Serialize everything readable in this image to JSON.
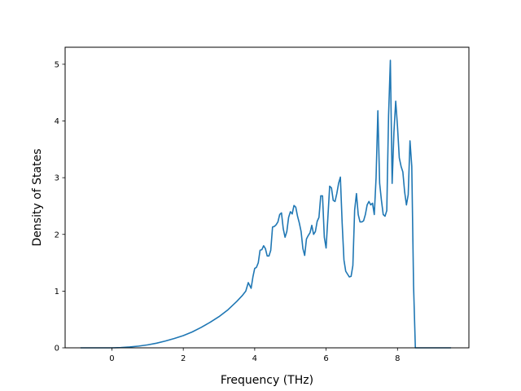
{
  "chart_data": {
    "type": "line",
    "title": "",
    "xlabel": "Frequency (THz)",
    "ylabel": "Density of States",
    "xlim": [
      -1.31,
      10.0
    ],
    "ylim": [
      0,
      5.3
    ],
    "grid": false,
    "legend": "none",
    "xticks": [
      0,
      2,
      4,
      6,
      8
    ],
    "yticks": [
      0,
      1,
      2,
      3,
      4,
      5
    ],
    "series": [
      {
        "color": "#1f77b4",
        "x": [
          -0.88,
          -0.5,
          0.0,
          0.25,
          0.5,
          0.75,
          1.0,
          1.25,
          1.5,
          1.75,
          2.0,
          2.25,
          2.5,
          2.75,
          3.0,
          3.25,
          3.5,
          3.65,
          3.75,
          3.82,
          3.86,
          3.9,
          3.95,
          4.0,
          4.05,
          4.1,
          4.15,
          4.2,
          4.25,
          4.3,
          4.35,
          4.4,
          4.45,
          4.5,
          4.55,
          4.6,
          4.65,
          4.7,
          4.75,
          4.8,
          4.85,
          4.9,
          4.95,
          5.0,
          5.05,
          5.1,
          5.15,
          5.2,
          5.25,
          5.3,
          5.35,
          5.4,
          5.45,
          5.5,
          5.55,
          5.6,
          5.65,
          5.7,
          5.75,
          5.8,
          5.85,
          5.9,
          5.95,
          6.0,
          6.05,
          6.1,
          6.15,
          6.2,
          6.25,
          6.3,
          6.35,
          6.4,
          6.45,
          6.5,
          6.55,
          6.6,
          6.65,
          6.7,
          6.75,
          6.8,
          6.85,
          6.9,
          6.95,
          7.0,
          7.05,
          7.1,
          7.15,
          7.2,
          7.25,
          7.3,
          7.35,
          7.4,
          7.45,
          7.5,
          7.55,
          7.6,
          7.65,
          7.7,
          7.75,
          7.8,
          7.85,
          7.9,
          7.95,
          8.0,
          8.05,
          8.1,
          8.15,
          8.2,
          8.25,
          8.3,
          8.35,
          8.4,
          8.45,
          8.5,
          8.55,
          8.6,
          8.65,
          8.7,
          9.0,
          9.5
        ],
        "y": [
          0.0,
          0.0,
          0.0,
          0.0047,
          0.0146,
          0.0308,
          0.052,
          0.082,
          0.12,
          0.165,
          0.215,
          0.28,
          0.36,
          0.45,
          0.55,
          0.67,
          0.82,
          0.92,
          1.0,
          1.15,
          1.1,
          1.05,
          1.25,
          1.4,
          1.42,
          1.5,
          1.72,
          1.73,
          1.8,
          1.75,
          1.62,
          1.62,
          1.72,
          2.13,
          2.14,
          2.17,
          2.22,
          2.35,
          2.38,
          2.1,
          1.95,
          2.05,
          2.3,
          2.4,
          2.36,
          2.51,
          2.48,
          2.32,
          2.2,
          2.05,
          1.75,
          1.63,
          1.92,
          1.98,
          2.03,
          2.16,
          2.0,
          2.05,
          2.23,
          2.3,
          2.68,
          2.68,
          1.95,
          1.76,
          2.3,
          2.85,
          2.82,
          2.6,
          2.58,
          2.72,
          2.9,
          3.01,
          2.2,
          1.55,
          1.35,
          1.3,
          1.25,
          1.26,
          1.45,
          2.43,
          2.72,
          2.35,
          2.22,
          2.22,
          2.24,
          2.35,
          2.52,
          2.58,
          2.52,
          2.55,
          2.35,
          3.0,
          4.18,
          2.9,
          2.6,
          2.35,
          2.32,
          2.42,
          4.1,
          5.07,
          2.9,
          3.8,
          4.35,
          3.9,
          3.35,
          3.2,
          3.1,
          2.75,
          2.52,
          2.7,
          3.65,
          3.2,
          1.1,
          0.0,
          0.0,
          0.0,
          0.0,
          0.0,
          0.0,
          0.0
        ]
      }
    ]
  }
}
